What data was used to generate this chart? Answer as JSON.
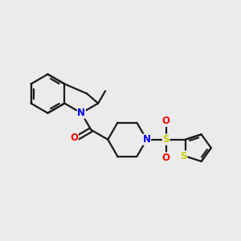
{
  "bg_color": "#ebebeb",
  "bond_color": "#1a1a1a",
  "N_color": "#0000ff",
  "O_color": "#ff0000",
  "S_color": "#cccc00",
  "lw": 1.6,
  "fig_w": 3.0,
  "fig_h": 3.0,
  "dpi": 100,
  "xlim": [
    -2.8,
    3.6
  ],
  "ylim": [
    -1.8,
    2.4
  ]
}
